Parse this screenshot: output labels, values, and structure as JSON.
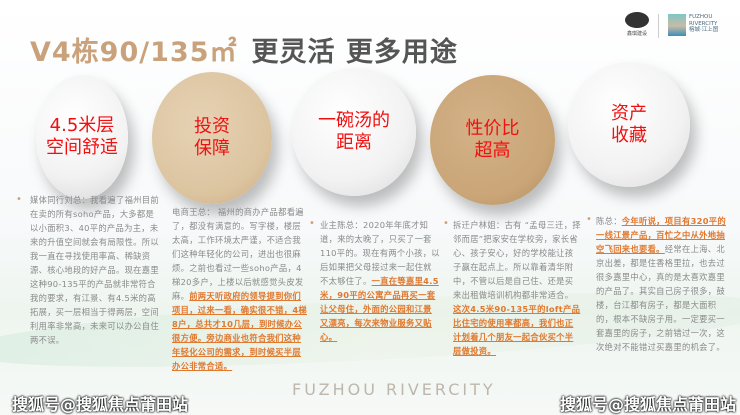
{
  "title": {
    "highlight": "V4栋90/135㎡",
    "rest": "更灵活 更多用途"
  },
  "logos": {
    "left_text": "鑫琪建设",
    "right_text": [
      "FUZHOU",
      "RIVERCITY",
      "榕城·江上图"
    ]
  },
  "circles": [
    "4.5米层空间舒适",
    "投资保障",
    "一碗汤的距离",
    "性价比超高",
    "资产收藏"
  ],
  "circle_lines": [
    [
      "4.5米层",
      "空间舒适"
    ],
    [
      "投资",
      "保障"
    ],
    [
      "一碗汤的",
      "距离"
    ],
    [
      "性价比",
      "超高"
    ],
    [
      "资产",
      "收藏"
    ]
  ],
  "columns": [
    {
      "plain": "媒体同行刘总：我看遍了福州目前在卖的所有soho产品，大多都是以小面积3、40平的产品为主，未来的升值空间就会有局限性。所以我一直在寻找使用率高、稀缺资源、核心地段的好产品。现在嘉里这种90-135平的产品就非常符合我的要求，有江景、有4.5米的高拓展，买一层相当于得两层，空间利用率非常高，未来可以办公自住两不误。",
      "highlight": "",
      "after": ""
    },
    {
      "plain": "电商王总： 福州的商办产品都看遍了，都没有满意的。写字楼，楼层太高，工作环境太严谨，不适合我们这种年轻化的公司，进出也很麻烦。之前也看过一些soho产品，4梯20多户，上楼以后就感觉头皮发麻。",
      "highlight": "前两天听政府的领导提到你们项目，过来一看，确实很不错，4梯8户，总共才10几层，到时候办公很方便。旁边商业也符合我们这种年轻化公司的需求，到时候买半层办公非常合适。",
      "after": ""
    },
    {
      "plain": "业主陈总：2020年年底才知道，来的太晚了，只买了一套110平的。现在有两个小孩，以后如果把父母接过来一起住就不太够住了。",
      "highlight": "一直在等嘉里4.5米，90平的公寓产品再买一套让父母住，外面的公园和江景又漂亮，每次来物业服务又贴心。",
      "after": ""
    },
    {
      "plain": "拆迁户林姐：古有 “孟母三迁，择邻而居”把家安在学校旁，家长省心、孩子安心，好的学校能让孩子赢在起点上。所以靠着清华附中，不管以后是自己住、还是买来出租做培训机构都非常适合。",
      "highlight": "这次4.5米90-135平的loft产品比住宅的使用率都高，我们也正计划着几个朋友一起合伙买个半层做投资。",
      "after": ""
    },
    {
      "plain": "陈总：",
      "highlight": "今年听说，项目有320平的一线江景产品，百忙之中从外地抽空飞回来也要看。",
      "after": "经常在上海、北京出差，都是住香格里拉，也去过很多嘉里中心，真的是太喜欢嘉里的产品了。其实自己房子很多，鼓楼，台江都有房子，都是大面积的，根本不缺房子用。一定要买一套嘉里的房子，之前错过一次，这次绝对不能错过买嘉里的机会了。"
    }
  ],
  "brand_text": "FUZHOU RIVERCITY",
  "watermark": "搜狐号@搜狐焦点莆田站",
  "colors": {
    "accent": "#c9a27c",
    "circle_text": "#f01010",
    "highlight": "#e0782e",
    "body_text": "#8a8a8a"
  }
}
